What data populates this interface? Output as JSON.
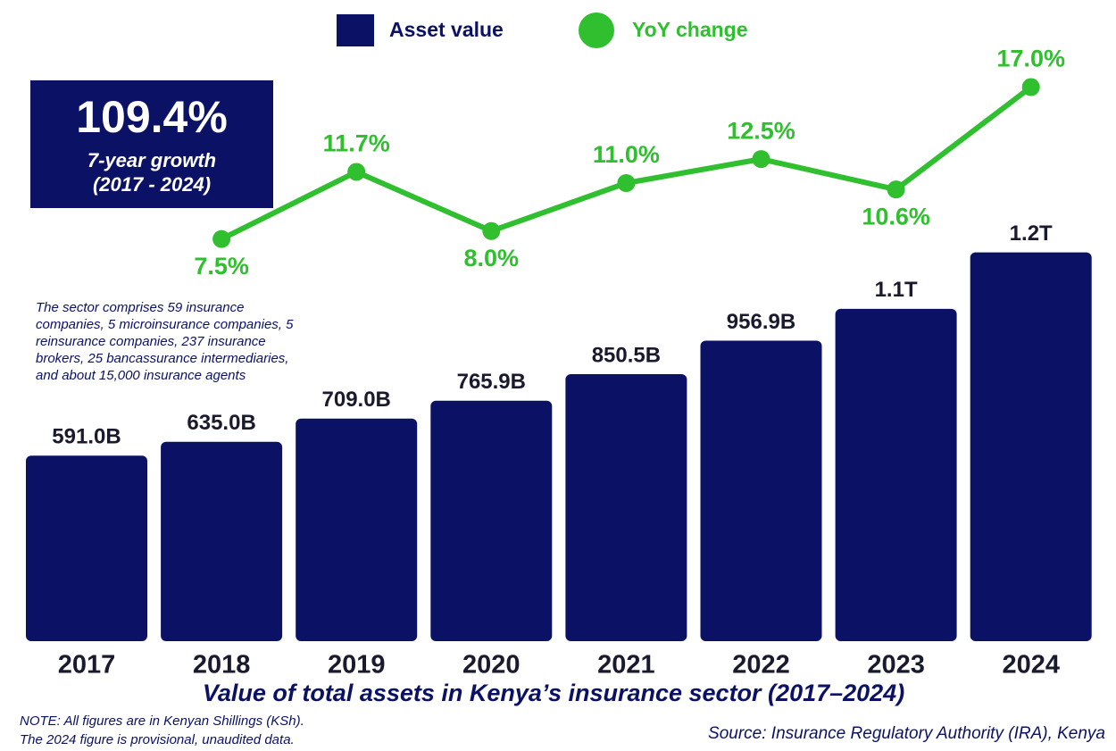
{
  "chart_data": {
    "type": "bar",
    "title": "Value of total assets in Kenya’s insurance sector (2017–2024)",
    "categories": [
      "2017",
      "2018",
      "2019",
      "2020",
      "2021",
      "2022",
      "2023",
      "2024"
    ],
    "series": [
      {
        "name": "Asset value",
        "type": "bar",
        "color": "#0b1265",
        "values": [
          591.0,
          635.0,
          709.0,
          765.9,
          850.5,
          956.9,
          1058.3,
          1238.2
        ],
        "value_labels": [
          "591.0B",
          "635.0B",
          "709.0B",
          "765.9B",
          "850.5B",
          "956.9B",
          "1.1T",
          "1.2T"
        ]
      },
      {
        "name": "YoY change",
        "type": "line",
        "axis": "y2",
        "color": "#2fbf2f",
        "values": [
          null,
          7.5,
          11.7,
          8.0,
          11.0,
          12.5,
          10.6,
          17.0
        ],
        "value_labels": [
          null,
          "7.5%",
          "11.7%",
          "8.0%",
          "11.0%",
          "12.5%",
          "10.6%",
          "17.0%"
        ]
      }
    ],
    "ylim": [
      0,
      1240
    ],
    "y2lim": [
      0,
      22
    ],
    "callout": {
      "value": "109.4%",
      "line1": "7-year growth",
      "line2": "(2017 - 2024)"
    },
    "note_lines": [
      "The sector comprises 59 insurance",
      "companies, 5 microinsurance companies, 5",
      "reinsurance companies, 237 insurance",
      "brokers, 25 bancassurance intermediaries,",
      "and about 15,000 insurance agents"
    ],
    "footnote_lines": [
      "NOTE: All figures are in Kenyan Shillings (KSh).",
      "The 2024 figure is provisional, unaudited data."
    ],
    "source": "Source: Insurance Regulatory Authority (IRA), Kenya"
  }
}
